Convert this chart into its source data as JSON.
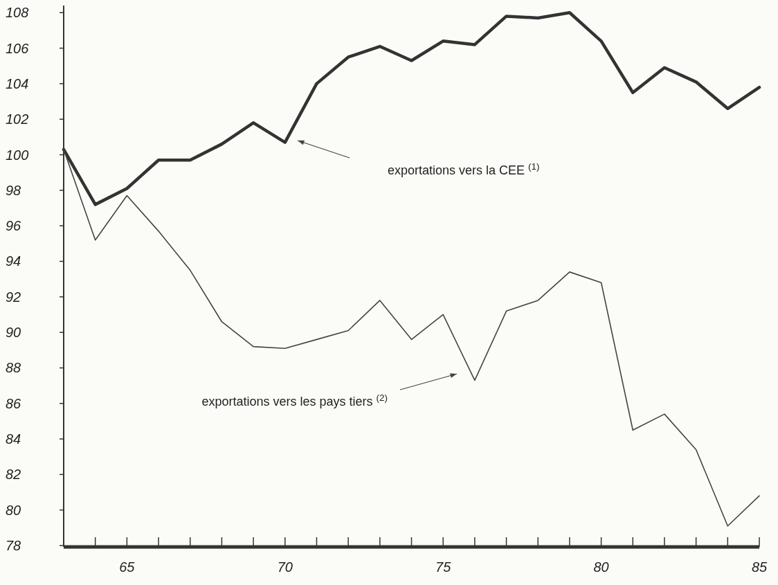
{
  "chart_data": {
    "type": "line",
    "x": [
      63,
      64,
      65,
      66,
      67,
      68,
      69,
      70,
      71,
      72,
      73,
      74,
      75,
      76,
      77,
      78,
      79,
      80,
      81,
      82,
      83,
      84,
      85
    ],
    "series": [
      {
        "color": "#333333",
        "values": [
          100.3,
          97.2,
          98.1,
          99.7,
          99.7,
          100.6,
          101.8,
          100.7,
          104.0,
          105.5,
          106.1,
          105.3,
          106.4,
          106.2,
          107.8,
          107.7,
          108.0,
          106.4,
          103.5,
          104.9,
          104.1,
          102.6,
          103.8
        ]
      },
      {
        "color": "#444444",
        "values": [
          100.3,
          95.2,
          97.7,
          95.7,
          93.5,
          90.6,
          89.2,
          89.1,
          89.6,
          90.1,
          91.8,
          89.6,
          91.0,
          87.3,
          91.2,
          91.8,
          93.4,
          92.8,
          84.5,
          85.4,
          83.4,
          79.1,
          80.8
        ]
      }
    ],
    "xlim": [
      63,
      85
    ],
    "xticks": [
      {
        "value": 63,
        "label": null
      },
      {
        "value": 64,
        "label": null
      },
      65,
      {
        "value": 66,
        "label": null
      },
      {
        "value": 67,
        "label": null
      },
      {
        "value": 68,
        "label": null
      },
      {
        "value": 69,
        "label": null
      },
      70,
      {
        "value": 71,
        "label": null
      },
      {
        "value": 72,
        "label": null
      },
      {
        "value": 73,
        "label": null
      },
      {
        "value": 74,
        "label": null
      },
      75,
      {
        "value": 76,
        "label": null
      },
      {
        "value": 77,
        "label": null
      },
      {
        "value": 78,
        "label": null
      },
      {
        "value": 79,
        "label": null
      },
      80,
      {
        "value": 81,
        "label": null
      },
      {
        "value": 82,
        "label": null
      },
      {
        "value": 83,
        "label": null
      },
      {
        "value": 84,
        "label": null
      },
      85
    ],
    "ylim": [
      78,
      108.4
    ],
    "yticks": [
      78,
      80,
      82,
      84,
      86,
      88,
      90,
      92,
      94,
      96,
      98,
      100,
      102,
      104,
      106,
      108
    ],
    "annotations": [
      "exportations vers la CEE $^{(1)}$",
      "exportations vers les pays tiers $^{(2)}$"
    ],
    "grid": false,
    "marker": "none",
    "line_style": "solid"
  }
}
